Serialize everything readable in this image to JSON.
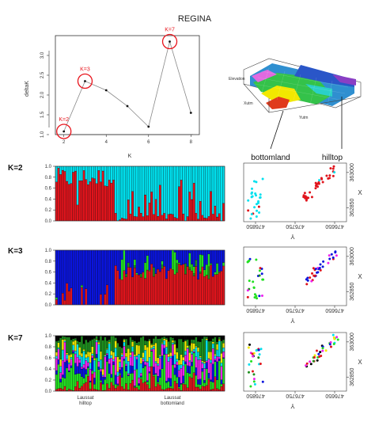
{
  "title": "REGINA",
  "chart_data": [
    {
      "type": "line",
      "x": [
        2,
        3,
        4,
        5,
        6,
        7,
        8
      ],
      "y": [
        1.08,
        2.35,
        2.12,
        1.72,
        1.2,
        3.35,
        1.55
      ],
      "xlabel": "K",
      "ylabel": "deltaK",
      "xlim": [
        1.6,
        8.4
      ],
      "ylim": [
        1.0,
        3.5
      ],
      "x_ticks": [
        "2",
        "4",
        "6",
        "8"
      ],
      "y_ticks": [
        "1.0",
        "1.5",
        "2.0",
        "2.5",
        "3.0"
      ],
      "highlights": [
        {
          "x": 2,
          "label": "K=2"
        },
        {
          "x": 3,
          "label": "K=3"
        },
        {
          "x": 7,
          "label": "K=7"
        }
      ],
      "highlight_color": "#e8141c"
    },
    {
      "type": "surface",
      "axis_labels": [
        "Elevation",
        "Xutm",
        "Yutm"
      ],
      "annotations": [
        "bottomland",
        "hilltop"
      ]
    },
    {
      "type": "bar",
      "stacked": true,
      "panel_label": "K=2",
      "y_ticks": [
        "0.0",
        "0.2",
        "0.4",
        "0.6",
        "0.8",
        "1.0"
      ],
      "colors": [
        "#e0141c",
        "#00e0ee"
      ],
      "n_bars": 80
    },
    {
      "type": "bar",
      "stacked": true,
      "panel_label": "K=3",
      "y_ticks": [
        "0.0",
        "0.2",
        "0.4",
        "0.6",
        "0.8",
        "1.0"
      ],
      "colors": [
        "#e0141c",
        "#1d8e1d",
        "#22e022",
        "#0a14dd"
      ],
      "n_bars": 80
    },
    {
      "type": "bar",
      "stacked": true,
      "panel_label": "K=7",
      "y_ticks": [
        "0.0",
        "0.2",
        "0.4",
        "0.6",
        "0.8",
        "1.0"
      ],
      "colors": [
        "#e0141c",
        "#22e022",
        "#0a14dd",
        "#ee22ee",
        "#00e0ee",
        "#f2e800",
        "#1d8e1d",
        "#000000"
      ],
      "n_bars": 80,
      "group_labels": [
        {
          "line1": "Laussat",
          "line2": "hilltop"
        },
        {
          "line1": "Laussat",
          "line2": "bottomland"
        }
      ]
    },
    {
      "type": "scatter",
      "xlabel": "Y",
      "ylabel": "X",
      "x_ticks": [
        "476850",
        "476750",
        "476650"
      ],
      "y_ticks": [
        "362850",
        "363000"
      ],
      "xlim": [
        476880,
        476620
      ],
      "ylim": [
        362790,
        363040
      ]
    }
  ]
}
